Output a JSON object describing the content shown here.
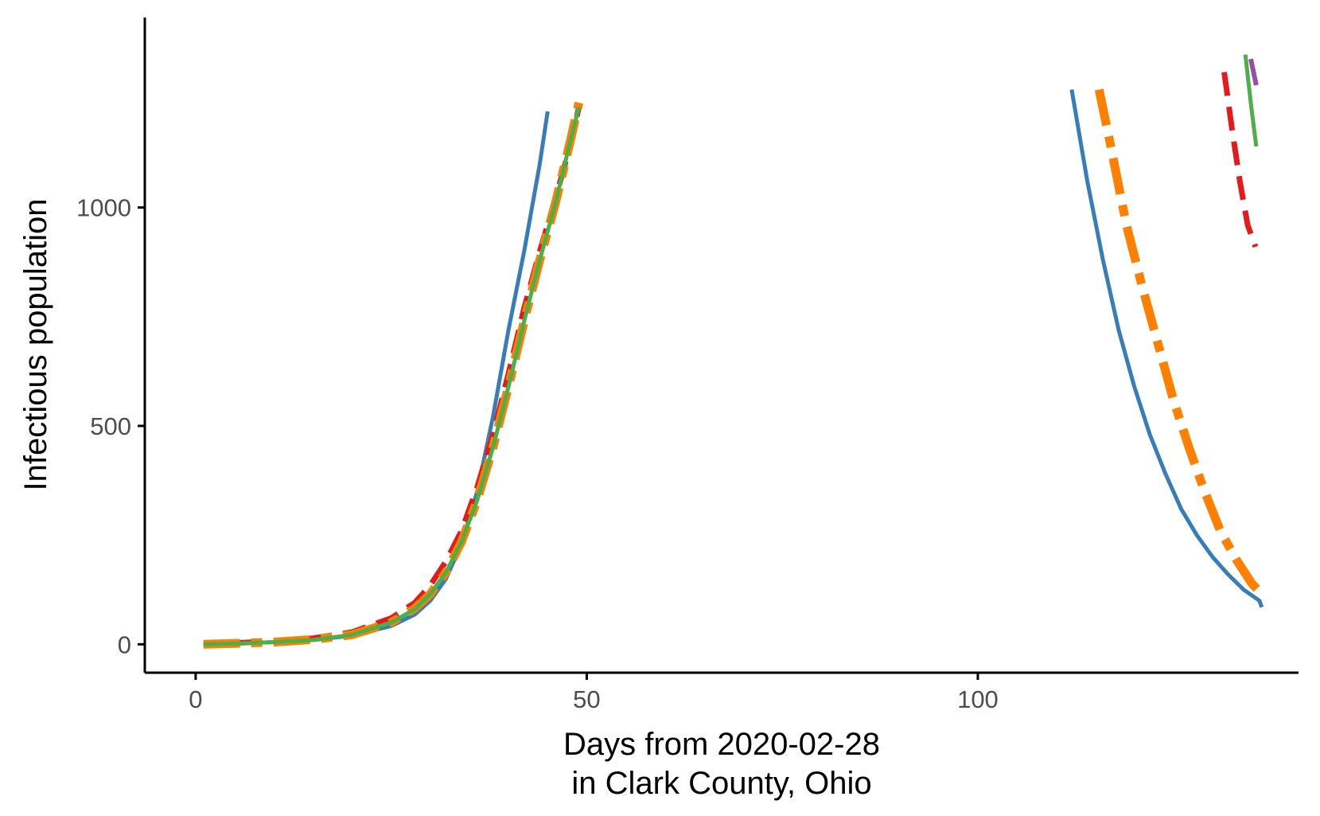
{
  "chart_data": {
    "type": "line",
    "title": "",
    "xlabel": [
      "Days from 2020-02-28",
      "in Clark County, Ohio"
    ],
    "ylabel": "Infectious population",
    "xlim": [
      -6.5,
      141
    ],
    "ylim": [
      -65,
      1435
    ],
    "x_ticks": [
      0,
      50,
      100
    ],
    "y_ticks": [
      0,
      500,
      1000
    ],
    "grid": false,
    "legend": "none",
    "series": [
      {
        "color": "#377EB8",
        "dash": "solid",
        "width": 5,
        "segments": [
          [
            [
              1,
              0
            ],
            [
              5,
              2
            ],
            [
              10,
              5
            ],
            [
              15,
              10
            ],
            [
              20,
              20
            ],
            [
              25,
              42
            ],
            [
              28,
              68
            ],
            [
              30,
              100
            ],
            [
              32,
              150
            ],
            [
              34,
              230
            ],
            [
              36,
              350
            ],
            [
              38,
              520
            ],
            [
              40,
              720
            ],
            [
              42,
              900
            ],
            [
              44,
              1100
            ],
            [
              45,
              1220
            ]
          ],
          [
            [
              112,
              1270
            ],
            [
              114,
              1060
            ],
            [
              116,
              880
            ],
            [
              118,
              720
            ],
            [
              120,
              590
            ],
            [
              122,
              480
            ],
            [
              124,
              390
            ],
            [
              126,
              310
            ],
            [
              128,
              250
            ],
            [
              130,
              200
            ],
            [
              132,
              160
            ],
            [
              134,
              125
            ],
            [
              136,
              100
            ],
            [
              136.3,
              85
            ]
          ]
        ]
      },
      {
        "color": "#E41A1C",
        "dash": "30 14",
        "width": 7,
        "segments": [
          [
            [
              1,
              0
            ],
            [
              5,
              3
            ],
            [
              10,
              7
            ],
            [
              15,
              14
            ],
            [
              20,
              28
            ],
            [
              25,
              60
            ],
            [
              28,
              95
            ],
            [
              30,
              135
            ],
            [
              32,
              190
            ],
            [
              34,
              260
            ],
            [
              36,
              360
            ],
            [
              38,
              480
            ],
            [
              40,
              620
            ],
            [
              42,
              770
            ],
            [
              44,
              900
            ],
            [
              46,
              1020
            ],
            [
              48,
              1150
            ],
            [
              49,
              1230
            ]
          ],
          [
            [
              131.5,
              1310
            ],
            [
              132.5,
              1180
            ],
            [
              133.5,
              1060
            ],
            [
              134.5,
              960
            ],
            [
              135.5,
              910
            ]
          ]
        ]
      },
      {
        "color": "#FF7F00",
        "dash": "46 14 14 14",
        "width": 11,
        "segments": [
          [
            [
              1,
              0
            ],
            [
              5,
              2
            ],
            [
              10,
              5
            ],
            [
              15,
              11
            ],
            [
              20,
              22
            ],
            [
              25,
              50
            ],
            [
              28,
              82
            ],
            [
              30,
              115
            ],
            [
              32,
              165
            ],
            [
              34,
              235
            ],
            [
              36,
              330
            ],
            [
              38,
              450
            ],
            [
              40,
              590
            ],
            [
              42,
              740
            ],
            [
              44,
              880
            ],
            [
              46,
              1010
            ],
            [
              48,
              1160
            ],
            [
              49,
              1240
            ]
          ],
          [
            [
              115.5,
              1270
            ],
            [
              117,
              1140
            ],
            [
              119,
              960
            ],
            [
              121,
              820
            ],
            [
              123,
              690
            ],
            [
              125,
              560
            ],
            [
              127,
              450
            ],
            [
              129,
              350
            ],
            [
              131,
              260
            ],
            [
              133,
              195
            ],
            [
              135,
              140
            ],
            [
              136.3,
              115
            ]
          ]
        ]
      },
      {
        "color": "#4DAF4A",
        "dash": "solid",
        "width": 5,
        "segments": [
          [
            [
              1,
              0
            ],
            [
              5,
              2
            ],
            [
              10,
              5
            ],
            [
              15,
              10
            ],
            [
              20,
              22
            ],
            [
              25,
              50
            ],
            [
              28,
              80
            ],
            [
              30,
              115
            ],
            [
              32,
              165
            ],
            [
              34,
              235
            ],
            [
              36,
              330
            ],
            [
              38,
              450
            ],
            [
              40,
              590
            ],
            [
              42,
              740
            ],
            [
              44,
              880
            ],
            [
              46,
              1010
            ],
            [
              48,
              1160
            ],
            [
              49,
              1230
            ]
          ],
          [
            [
              134.2,
              1350
            ],
            [
              134.9,
              1240
            ],
            [
              135.6,
              1140
            ]
          ]
        ]
      },
      {
        "color": "#984EA3",
        "dash": "solid",
        "width": 6,
        "segments": [
          [
            [
              134.9,
              1340
            ],
            [
              135.6,
              1280
            ]
          ]
        ]
      }
    ]
  }
}
